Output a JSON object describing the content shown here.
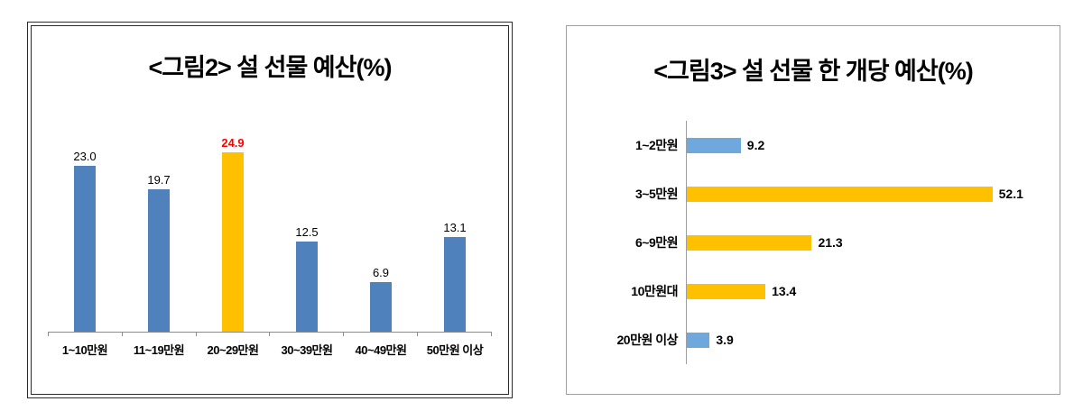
{
  "chart_data": [
    {
      "type": "bar",
      "title": "<그림2> 설 선물 예산(%)",
      "categories": [
        "1~10만원",
        "11~19만원",
        "20~29만원",
        "30~39만원",
        "40~49만원",
        "50만원 이상"
      ],
      "values": [
        23.0,
        19.7,
        24.9,
        12.5,
        6.9,
        13.1
      ],
      "value_labels": [
        "23.0",
        "19.7",
        "24.9",
        "12.5",
        "6.9",
        "13.1"
      ],
      "highlight_index": 2,
      "bar_color": "#4f81bd",
      "highlight_color": "#ffc000",
      "highlight_label_color": "#ff0000",
      "ylim": [
        0,
        26
      ],
      "grid": false,
      "legend": "none"
    },
    {
      "type": "horizontal_bar",
      "title": "<그림3> 설 선물 한 개당 예산(%)",
      "categories": [
        "1~2만원",
        "3~5만원",
        "6~9만원",
        "10만원대",
        "20만원 이상"
      ],
      "values": [
        9.2,
        52.1,
        21.3,
        13.4,
        3.9
      ],
      "value_labels": [
        "9.2",
        "52.1",
        "21.3",
        "13.4",
        "3.9"
      ],
      "bar_colors": [
        "#6fa8dc",
        "#ffc000",
        "#ffc000",
        "#ffc000",
        "#6fa8dc"
      ],
      "xlim": [
        0,
        55
      ],
      "grid": false,
      "legend": "none"
    }
  ]
}
